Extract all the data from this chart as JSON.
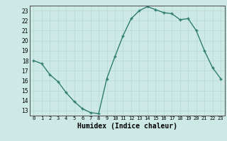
{
  "x": [
    0,
    1,
    2,
    3,
    4,
    5,
    6,
    7,
    8,
    9,
    10,
    11,
    12,
    13,
    14,
    15,
    16,
    17,
    18,
    19,
    20,
    21,
    22,
    23
  ],
  "y": [
    18,
    17.7,
    16.6,
    15.9,
    14.8,
    13.9,
    13.2,
    12.8,
    12.7,
    16.2,
    18.4,
    20.5,
    22.2,
    23.0,
    23.4,
    23.1,
    22.8,
    22.7,
    22.1,
    22.2,
    21.0,
    19.0,
    17.3,
    16.2
  ],
  "title": "",
  "xlabel": "Humidex (Indice chaleur)",
  "ylabel": "",
  "xlim": [
    -0.5,
    23.5
  ],
  "ylim": [
    12.5,
    23.5
  ],
  "yticks": [
    13,
    14,
    15,
    16,
    17,
    18,
    19,
    20,
    21,
    22,
    23
  ],
  "xticks": [
    0,
    1,
    2,
    3,
    4,
    5,
    6,
    7,
    8,
    9,
    10,
    11,
    12,
    13,
    14,
    15,
    16,
    17,
    18,
    19,
    20,
    21,
    22,
    23
  ],
  "line_color": "#2e7d6e",
  "marker": "+",
  "bg_color": "#cce9e5",
  "grid_color": "#b8d8d4"
}
